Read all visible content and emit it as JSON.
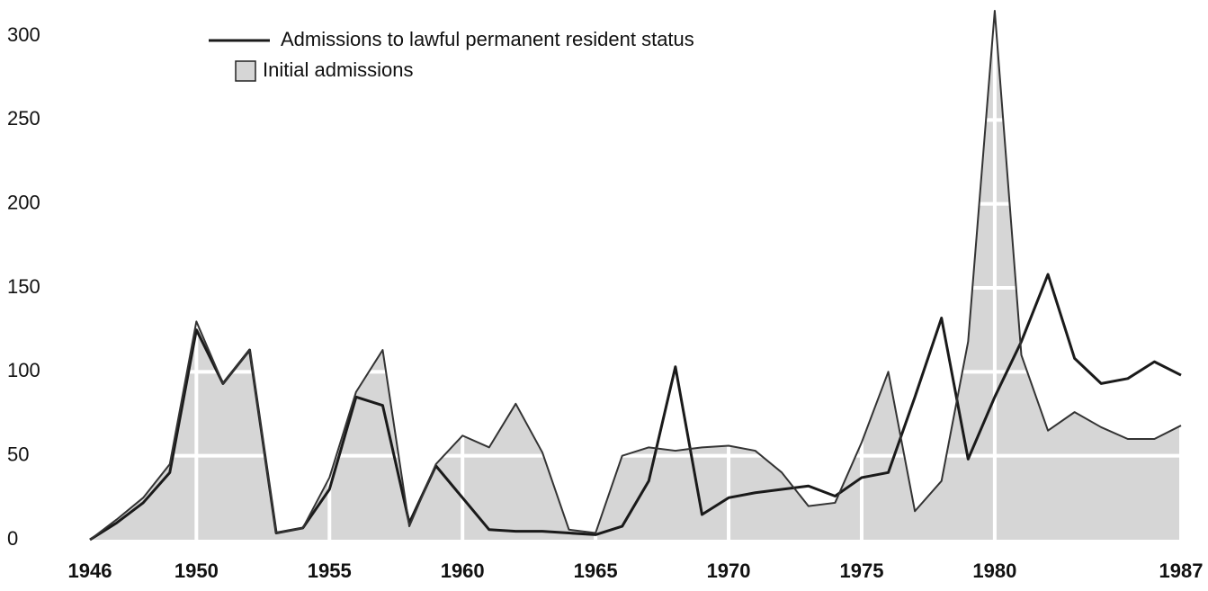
{
  "chart_data": {
    "type": "line",
    "x": [
      1946,
      1947,
      1948,
      1949,
      1950,
      1951,
      1952,
      1953,
      1954,
      1955,
      1956,
      1957,
      1958,
      1959,
      1960,
      1961,
      1962,
      1963,
      1964,
      1965,
      1966,
      1967,
      1968,
      1969,
      1970,
      1971,
      1972,
      1973,
      1974,
      1975,
      1976,
      1977,
      1978,
      1979,
      1980,
      1981,
      1982,
      1983,
      1984,
      1985,
      1986,
      1987
    ],
    "series": [
      {
        "name": "Admissions to lawful permanent resident status",
        "color": "#1a1a1a",
        "style": "line",
        "values": [
          0,
          10,
          22,
          40,
          125,
          93,
          113,
          4,
          7,
          30,
          85,
          80,
          10,
          44,
          25,
          6,
          5,
          5,
          4,
          3,
          8,
          35,
          103,
          15,
          25,
          28,
          30,
          32,
          26,
          37,
          40,
          85,
          132,
          48,
          85,
          118,
          158,
          108,
          93,
          96,
          106,
          98
        ]
      },
      {
        "name": "Initial admissions",
        "color": "#d6d6d6",
        "style": "area",
        "values": [
          0,
          12,
          25,
          45,
          130,
          93,
          113,
          4,
          7,
          37,
          88,
          113,
          8,
          45,
          62,
          55,
          81,
          52,
          6,
          4,
          50,
          55,
          53,
          55,
          56,
          53,
          40,
          20,
          22,
          58,
          100,
          17,
          35,
          118,
          315,
          110,
          65,
          76,
          67,
          60,
          60,
          68
        ]
      }
    ],
    "xlim": [
      1946,
      1987
    ],
    "xticks": [
      1946,
      1950,
      1955,
      1960,
      1965,
      1970,
      1975,
      1980,
      1987
    ],
    "ylim": [
      0,
      300
    ],
    "yticks": [
      0,
      50,
      100,
      150,
      200,
      250,
      300
    ],
    "grid": true,
    "legend": "top-left"
  }
}
